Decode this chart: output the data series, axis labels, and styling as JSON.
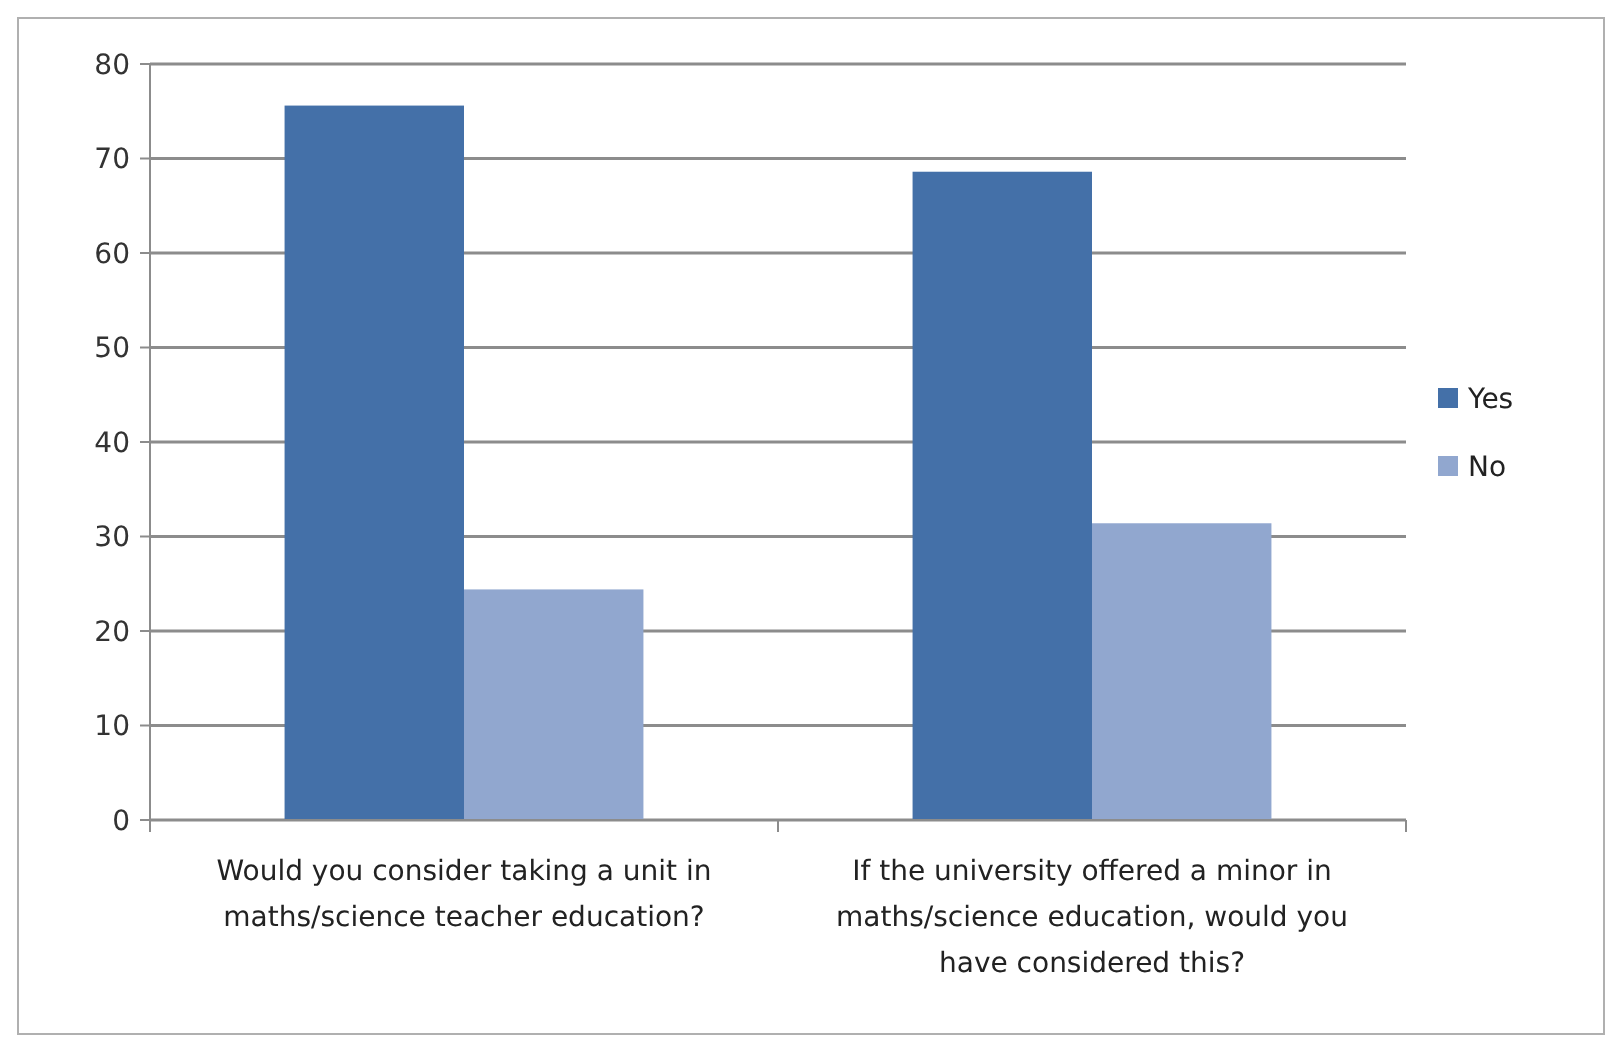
{
  "chart_data": {
    "type": "bar",
    "categories": [
      "Would you consider taking a unit in maths/science teacher education?",
      "If the university offered a minor in maths/science education, would you have considered this?"
    ],
    "series": [
      {
        "name": "Yes",
        "color": "#4470a8",
        "values": [
          75.6,
          68.6
        ]
      },
      {
        "name": "No",
        "color": "#91a7cf",
        "values": [
          24.4,
          31.4
        ]
      }
    ],
    "ylim": [
      0,
      80
    ],
    "yticks": [
      0,
      10,
      20,
      30,
      40,
      50,
      60,
      70,
      80
    ],
    "grid": "y",
    "legend": "right"
  }
}
